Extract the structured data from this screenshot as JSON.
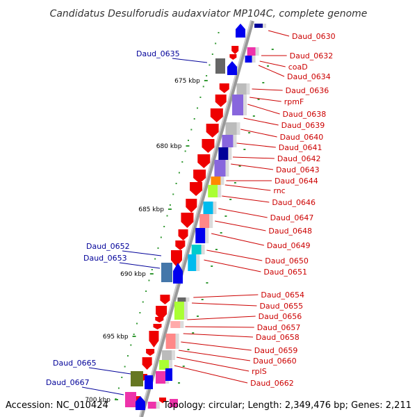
{
  "title": "Candidatus Desulforudis audaxviator MP104C, complete genome",
  "footer": {
    "accession": "Accession: NC_010424",
    "info": "Topology: circular; Length: 2,349,476 bp; Genes: 2,211"
  },
  "ticks": [
    "675 kbp",
    "680 kbp",
    "685 kbp",
    "690 kbp",
    "695 kbp",
    "700 kbp"
  ],
  "right_labels": [
    "Daud_0630",
    "Daud_0632",
    "coaD",
    "Daud_0634",
    "Daud_0636",
    "rpmF",
    "Daud_0638",
    "Daud_0639",
    "Daud_0640",
    "Daud_0641",
    "Daud_0642",
    "Daud_0643",
    "Daud_0644",
    "rnc",
    "Daud_0646",
    "Daud_0647",
    "Daud_0648",
    "Daud_0649",
    "Daud_0650",
    "Daud_0651",
    "Daud_0654",
    "Daud_0655",
    "Daud_0656",
    "Daud_0657",
    "Daud_0658",
    "Daud_0659",
    "Daud_0660",
    "rplS",
    "Daud_0662"
  ],
  "left_labels": [
    "Daud_0635",
    "Daud_0652",
    "Daud_0653",
    "Daud_0665",
    "Daud_0667"
  ],
  "colors": {
    "backbone": "#888888",
    "reverse_strand": "#ee0000",
    "forward_strand": "#0000ee",
    "tick": "#339933",
    "label_right": "#cc0000",
    "label_left": "#000099"
  }
}
